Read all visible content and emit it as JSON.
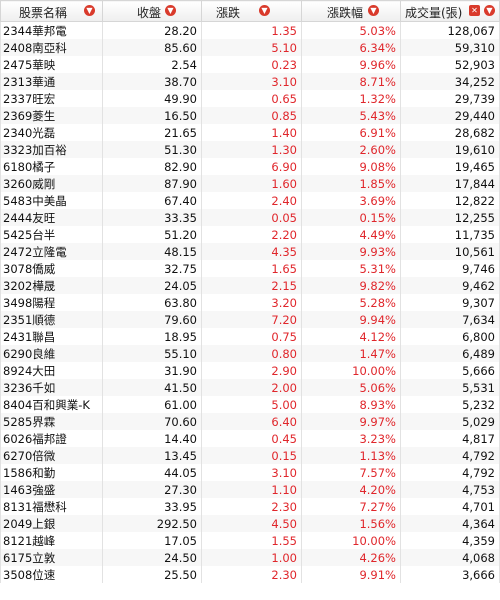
{
  "headers": [
    "股票名稱",
    "收盤",
    "漲跌",
    "漲跌幅",
    "成交量(張)"
  ],
  "rows": [
    {
      "name": "2344華邦電",
      "close": "28.20",
      "change": "1.35",
      "pct": "5.03%",
      "vol": "128,067"
    },
    {
      "name": "2408南亞科",
      "close": "85.60",
      "change": "5.10",
      "pct": "6.34%",
      "vol": "59,310"
    },
    {
      "name": "2475華映",
      "close": "2.54",
      "change": "0.23",
      "pct": "9.96%",
      "vol": "52,903"
    },
    {
      "name": "2313華通",
      "close": "38.70",
      "change": "3.10",
      "pct": "8.71%",
      "vol": "34,252"
    },
    {
      "name": "2337旺宏",
      "close": "49.90",
      "change": "0.65",
      "pct": "1.32%",
      "vol": "29,739"
    },
    {
      "name": "2369菱生",
      "close": "16.50",
      "change": "0.85",
      "pct": "5.43%",
      "vol": "29,440"
    },
    {
      "name": "2340光磊",
      "close": "21.65",
      "change": "1.40",
      "pct": "6.91%",
      "vol": "28,682"
    },
    {
      "name": "3323加百裕",
      "close": "51.30",
      "change": "1.30",
      "pct": "2.60%",
      "vol": "19,610"
    },
    {
      "name": "6180橘子",
      "close": "82.90",
      "change": "6.90",
      "pct": "9.08%",
      "vol": "19,465"
    },
    {
      "name": "3260威剛",
      "close": "87.90",
      "change": "1.60",
      "pct": "1.85%",
      "vol": "17,844"
    },
    {
      "name": "5483中美晶",
      "close": "67.40",
      "change": "2.40",
      "pct": "3.69%",
      "vol": "12,822"
    },
    {
      "name": "2444友旺",
      "close": "33.35",
      "change": "0.05",
      "pct": "0.15%",
      "vol": "12,255"
    },
    {
      "name": "5425台半",
      "close": "51.20",
      "change": "2.20",
      "pct": "4.49%",
      "vol": "11,735"
    },
    {
      "name": "2472立隆電",
      "close": "48.15",
      "change": "4.35",
      "pct": "9.93%",
      "vol": "10,561"
    },
    {
      "name": "3078僑威",
      "close": "32.75",
      "change": "1.65",
      "pct": "5.31%",
      "vol": "9,746"
    },
    {
      "name": "3202樺晟",
      "close": "24.05",
      "change": "2.15",
      "pct": "9.82%",
      "vol": "9,462"
    },
    {
      "name": "3498陽程",
      "close": "63.80",
      "change": "3.20",
      "pct": "5.28%",
      "vol": "9,307"
    },
    {
      "name": "2351順德",
      "close": "79.60",
      "change": "7.20",
      "pct": "9.94%",
      "vol": "7,634"
    },
    {
      "name": "2431聯昌",
      "close": "18.95",
      "change": "0.75",
      "pct": "4.12%",
      "vol": "6,800"
    },
    {
      "name": "6290良維",
      "close": "55.10",
      "change": "0.80",
      "pct": "1.47%",
      "vol": "6,489"
    },
    {
      "name": "8924大田",
      "close": "31.90",
      "change": "2.90",
      "pct": "10.00%",
      "vol": "5,666"
    },
    {
      "name": "3236千如",
      "close": "41.50",
      "change": "2.00",
      "pct": "5.06%",
      "vol": "5,531"
    },
    {
      "name": "8404百和興業-K",
      "close": "61.00",
      "change": "5.00",
      "pct": "8.93%",
      "vol": "5,232"
    },
    {
      "name": "5285界霖",
      "close": "70.60",
      "change": "6.40",
      "pct": "9.97%",
      "vol": "5,029"
    },
    {
      "name": "6026福邦證",
      "close": "14.40",
      "change": "0.45",
      "pct": "3.23%",
      "vol": "4,817"
    },
    {
      "name": "6270倍微",
      "close": "13.45",
      "change": "0.15",
      "pct": "1.13%",
      "vol": "4,792"
    },
    {
      "name": "1586和勤",
      "close": "44.05",
      "change": "3.10",
      "pct": "7.57%",
      "vol": "4,792"
    },
    {
      "name": "1463強盛",
      "close": "27.30",
      "change": "1.10",
      "pct": "4.20%",
      "vol": "4,753"
    },
    {
      "name": "8131福懋科",
      "close": "33.95",
      "change": "2.30",
      "pct": "7.27%",
      "vol": "4,701"
    },
    {
      "name": "2049上銀",
      "close": "292.50",
      "change": "4.50",
      "pct": "1.56%",
      "vol": "4,364"
    },
    {
      "name": "8121越峰",
      "close": "17.05",
      "change": "1.55",
      "pct": "10.00%",
      "vol": "4,359"
    },
    {
      "name": "6175立敦",
      "close": "24.50",
      "change": "1.00",
      "pct": "4.26%",
      "vol": "4,068"
    },
    {
      "name": "3508位速",
      "close": "25.50",
      "change": "2.30",
      "pct": "9.91%",
      "vol": "3,666"
    }
  ],
  "colors": {
    "up": "#e0262b",
    "sort_icon": "#d93a2b"
  },
  "icons": [
    "sort-down-icon",
    "sort-down-icon",
    "sort-down-icon",
    "sort-down-icon",
    "clear-sort-icon",
    "sort-down-icon"
  ]
}
